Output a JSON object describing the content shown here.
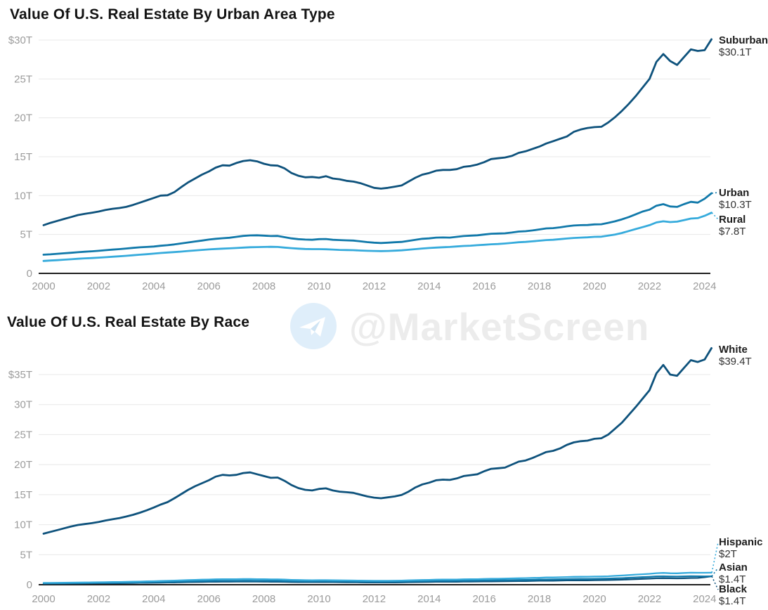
{
  "watermark": {
    "text": "@MarketScreen",
    "icon": "telegram-plane-icon"
  },
  "chart_data": [
    {
      "type": "line",
      "title": "Value Of U.S. Real Estate By Urban Area Type",
      "x_start": 2000,
      "x_step": 0.25,
      "x_end": 2024.25,
      "ylim": [
        0,
        31
      ],
      "grid": "horizontal",
      "legend_position": "right-end-labels",
      "x_ticks": [
        "2000",
        "2002",
        "2004",
        "2006",
        "2008",
        "2010",
        "2012",
        "2014",
        "2016",
        "2018",
        "2020",
        "2022",
        "2024"
      ],
      "y_ticks": [
        {
          "label": "$30T",
          "value": 30
        },
        {
          "label": "25T",
          "value": 25
        },
        {
          "label": "20T",
          "value": 20
        },
        {
          "label": "15T",
          "value": 15
        },
        {
          "label": "10T",
          "value": 10
        },
        {
          "label": "5T",
          "value": 5
        },
        {
          "label": "0",
          "value": 0
        }
      ],
      "series": [
        {
          "name": "Suburban",
          "value_label": "$30.1T",
          "color": "#0e527c",
          "values": [
            6.2,
            6.5,
            6.75,
            7.0,
            7.25,
            7.5,
            7.65,
            7.8,
            7.95,
            8.15,
            8.3,
            8.4,
            8.55,
            8.8,
            9.1,
            9.4,
            9.7,
            10.0,
            10.05,
            10.45,
            11.1,
            11.7,
            12.2,
            12.7,
            13.1,
            13.6,
            13.9,
            13.85,
            14.2,
            14.45,
            14.55,
            14.4,
            14.1,
            13.9,
            13.85,
            13.5,
            12.9,
            12.55,
            12.35,
            12.4,
            12.3,
            12.5,
            12.2,
            12.1,
            11.9,
            11.8,
            11.6,
            11.3,
            11.0,
            10.9,
            11.0,
            11.15,
            11.3,
            11.8,
            12.3,
            12.7,
            12.9,
            13.2,
            13.3,
            13.3,
            13.4,
            13.7,
            13.8,
            14.0,
            14.3,
            14.7,
            14.8,
            14.9,
            15.1,
            15.5,
            15.7,
            16.0,
            16.3,
            16.7,
            17.0,
            17.3,
            17.6,
            18.2,
            18.5,
            18.7,
            18.8,
            18.85,
            19.4,
            20.1,
            20.9,
            21.8,
            22.8,
            23.9,
            25.0,
            27.2,
            28.2,
            27.3,
            26.8,
            27.8,
            28.8,
            28.6,
            28.7,
            30.1
          ]
        },
        {
          "name": "Urban",
          "value_label": "$10.3T",
          "color": "#1179aa",
          "values": [
            2.4,
            2.45,
            2.52,
            2.58,
            2.65,
            2.72,
            2.78,
            2.84,
            2.9,
            2.98,
            3.05,
            3.12,
            3.2,
            3.28,
            3.35,
            3.4,
            3.45,
            3.55,
            3.62,
            3.72,
            3.85,
            3.98,
            4.1,
            4.22,
            4.35,
            4.45,
            4.52,
            4.58,
            4.7,
            4.82,
            4.88,
            4.9,
            4.85,
            4.8,
            4.82,
            4.65,
            4.5,
            4.4,
            4.35,
            4.32,
            4.4,
            4.42,
            4.32,
            4.28,
            4.25,
            4.22,
            4.12,
            4.02,
            3.95,
            3.9,
            3.95,
            4.0,
            4.05,
            4.18,
            4.32,
            4.45,
            4.5,
            4.6,
            4.62,
            4.6,
            4.7,
            4.8,
            4.85,
            4.9,
            5.0,
            5.1,
            5.12,
            5.15,
            5.25,
            5.38,
            5.42,
            5.52,
            5.65,
            5.78,
            5.82,
            5.92,
            6.05,
            6.15,
            6.2,
            6.22,
            6.3,
            6.32,
            6.5,
            6.7,
            6.95,
            7.25,
            7.6,
            7.95,
            8.2,
            8.7,
            8.9,
            8.6,
            8.55,
            8.9,
            9.2,
            9.1,
            9.6,
            10.3
          ]
        },
        {
          "name": "Rural",
          "value_label": "$7.8T",
          "color": "#36abdc",
          "values": [
            1.6,
            1.65,
            1.7,
            1.76,
            1.82,
            1.88,
            1.93,
            1.97,
            2.02,
            2.08,
            2.14,
            2.2,
            2.26,
            2.33,
            2.4,
            2.47,
            2.54,
            2.62,
            2.68,
            2.74,
            2.8,
            2.88,
            2.95,
            3.02,
            3.08,
            3.14,
            3.18,
            3.22,
            3.26,
            3.32,
            3.36,
            3.38,
            3.4,
            3.42,
            3.4,
            3.32,
            3.24,
            3.18,
            3.14,
            3.12,
            3.12,
            3.1,
            3.06,
            3.02,
            3.0,
            2.98,
            2.94,
            2.9,
            2.88,
            2.86,
            2.88,
            2.92,
            2.96,
            3.04,
            3.12,
            3.2,
            3.26,
            3.32,
            3.36,
            3.4,
            3.46,
            3.52,
            3.56,
            3.62,
            3.68,
            3.74,
            3.78,
            3.84,
            3.92,
            4.0,
            4.05,
            4.12,
            4.2,
            4.28,
            4.32,
            4.4,
            4.48,
            4.55,
            4.6,
            4.64,
            4.7,
            4.72,
            4.85,
            5.0,
            5.2,
            5.45,
            5.7,
            5.95,
            6.2,
            6.55,
            6.7,
            6.6,
            6.65,
            6.85,
            7.05,
            7.1,
            7.4,
            7.8
          ]
        }
      ]
    },
    {
      "type": "line",
      "title": "Value Of U.S. Real Estate By Race",
      "x_start": 2000,
      "x_step": 0.25,
      "x_end": 2024.25,
      "ylim": [
        0,
        41
      ],
      "grid": "horizontal",
      "legend_position": "right-end-labels",
      "x_ticks": [
        "2000",
        "2002",
        "2004",
        "2006",
        "2008",
        "2010",
        "2012",
        "2014",
        "2016",
        "2018",
        "2020",
        "2022",
        "2024"
      ],
      "y_ticks": [
        {
          "label": "$35T",
          "value": 35
        },
        {
          "label": "30T",
          "value": 30
        },
        {
          "label": "25T",
          "value": 25
        },
        {
          "label": "20T",
          "value": 20
        },
        {
          "label": "15T",
          "value": 15
        },
        {
          "label": "10T",
          "value": 10
        },
        {
          "label": "5T",
          "value": 5
        },
        {
          "label": "0",
          "value": 0
        }
      ],
      "series": [
        {
          "name": "White",
          "value_label": "$39.4T",
          "color": "#0e527c",
          "values": [
            8.5,
            8.8,
            9.1,
            9.4,
            9.7,
            9.95,
            10.1,
            10.25,
            10.45,
            10.7,
            10.9,
            11.1,
            11.35,
            11.65,
            12.0,
            12.4,
            12.85,
            13.35,
            13.75,
            14.4,
            15.1,
            15.8,
            16.4,
            16.9,
            17.4,
            18.0,
            18.3,
            18.2,
            18.3,
            18.6,
            18.7,
            18.4,
            18.1,
            17.8,
            17.85,
            17.3,
            16.6,
            16.1,
            15.8,
            15.7,
            15.95,
            16.05,
            15.7,
            15.5,
            15.4,
            15.3,
            15.0,
            14.7,
            14.5,
            14.4,
            14.55,
            14.7,
            14.95,
            15.5,
            16.2,
            16.7,
            17.0,
            17.4,
            17.5,
            17.45,
            17.7,
            18.1,
            18.25,
            18.4,
            18.9,
            19.3,
            19.4,
            19.5,
            20.0,
            20.5,
            20.7,
            21.1,
            21.6,
            22.1,
            22.3,
            22.7,
            23.3,
            23.7,
            23.9,
            24.0,
            24.3,
            24.4,
            25.0,
            26.0,
            27.0,
            28.3,
            29.6,
            31.0,
            32.4,
            35.2,
            36.6,
            35.0,
            34.8,
            36.1,
            37.4,
            37.1,
            37.5,
            39.4
          ]
        },
        {
          "name": "Hispanic",
          "value_label": "$2T",
          "color": "#36abdc",
          "values": [
            0.3,
            0.31,
            0.32,
            0.33,
            0.35,
            0.36,
            0.38,
            0.39,
            0.41,
            0.42,
            0.44,
            0.46,
            0.48,
            0.5,
            0.53,
            0.56,
            0.59,
            0.62,
            0.65,
            0.69,
            0.73,
            0.77,
            0.81,
            0.84,
            0.87,
            0.9,
            0.92,
            0.92,
            0.93,
            0.95,
            0.95,
            0.93,
            0.91,
            0.89,
            0.89,
            0.85,
            0.81,
            0.78,
            0.76,
            0.75,
            0.76,
            0.76,
            0.74,
            0.72,
            0.71,
            0.7,
            0.68,
            0.67,
            0.66,
            0.65,
            0.66,
            0.67,
            0.69,
            0.72,
            0.76,
            0.79,
            0.81,
            0.84,
            0.85,
            0.85,
            0.87,
            0.9,
            0.91,
            0.93,
            0.96,
            0.99,
            1.0,
            1.02,
            1.05,
            1.08,
            1.1,
            1.13,
            1.16,
            1.2,
            1.21,
            1.24,
            1.28,
            1.31,
            1.32,
            1.33,
            1.36,
            1.37,
            1.41,
            1.47,
            1.53,
            1.6,
            1.68,
            1.75,
            1.82,
            1.92,
            1.97,
            1.91,
            1.9,
            1.95,
            2.0,
            1.99,
            1.99,
            2.0
          ]
        },
        {
          "name": "Asian",
          "value_label": "$1.4T",
          "color": "#1179aa",
          "values": [
            0.22,
            0.23,
            0.24,
            0.25,
            0.26,
            0.27,
            0.28,
            0.29,
            0.3,
            0.31,
            0.32,
            0.33,
            0.34,
            0.36,
            0.38,
            0.4,
            0.42,
            0.44,
            0.46,
            0.49,
            0.52,
            0.55,
            0.58,
            0.6,
            0.62,
            0.64,
            0.65,
            0.65,
            0.66,
            0.67,
            0.67,
            0.66,
            0.65,
            0.64,
            0.64,
            0.61,
            0.58,
            0.56,
            0.55,
            0.55,
            0.56,
            0.56,
            0.55,
            0.54,
            0.53,
            0.52,
            0.51,
            0.5,
            0.5,
            0.49,
            0.5,
            0.51,
            0.52,
            0.54,
            0.57,
            0.59,
            0.61,
            0.63,
            0.63,
            0.63,
            0.65,
            0.67,
            0.68,
            0.69,
            0.71,
            0.73,
            0.74,
            0.75,
            0.77,
            0.79,
            0.8,
            0.82,
            0.85,
            0.87,
            0.88,
            0.9,
            0.93,
            0.95,
            0.96,
            0.96,
            0.98,
            0.99,
            1.02,
            1.06,
            1.1,
            1.15,
            1.21,
            1.26,
            1.31,
            1.38,
            1.41,
            1.37,
            1.36,
            1.39,
            1.42,
            1.41,
            1.39,
            1.4
          ]
        },
        {
          "name": "Black",
          "value_label": "$1.4T",
          "color": "#0e527c",
          "values": [
            0.18,
            0.19,
            0.19,
            0.2,
            0.21,
            0.21,
            0.22,
            0.23,
            0.24,
            0.25,
            0.25,
            0.26,
            0.27,
            0.28,
            0.3,
            0.31,
            0.33,
            0.34,
            0.36,
            0.38,
            0.4,
            0.42,
            0.44,
            0.46,
            0.48,
            0.49,
            0.5,
            0.5,
            0.51,
            0.52,
            0.52,
            0.51,
            0.5,
            0.49,
            0.49,
            0.47,
            0.45,
            0.43,
            0.42,
            0.42,
            0.43,
            0.43,
            0.42,
            0.41,
            0.4,
            0.4,
            0.39,
            0.38,
            0.38,
            0.37,
            0.38,
            0.38,
            0.39,
            0.41,
            0.43,
            0.45,
            0.46,
            0.48,
            0.48,
            0.48,
            0.49,
            0.51,
            0.52,
            0.53,
            0.54,
            0.55,
            0.56,
            0.57,
            0.59,
            0.6,
            0.61,
            0.63,
            0.65,
            0.66,
            0.67,
            0.69,
            0.71,
            0.72,
            0.73,
            0.73,
            0.75,
            0.76,
            0.78,
            0.81,
            0.84,
            0.88,
            0.93,
            0.97,
            1.01,
            1.06,
            1.09,
            1.06,
            1.05,
            1.08,
            1.11,
            1.12,
            1.25,
            1.4
          ]
        }
      ]
    }
  ]
}
